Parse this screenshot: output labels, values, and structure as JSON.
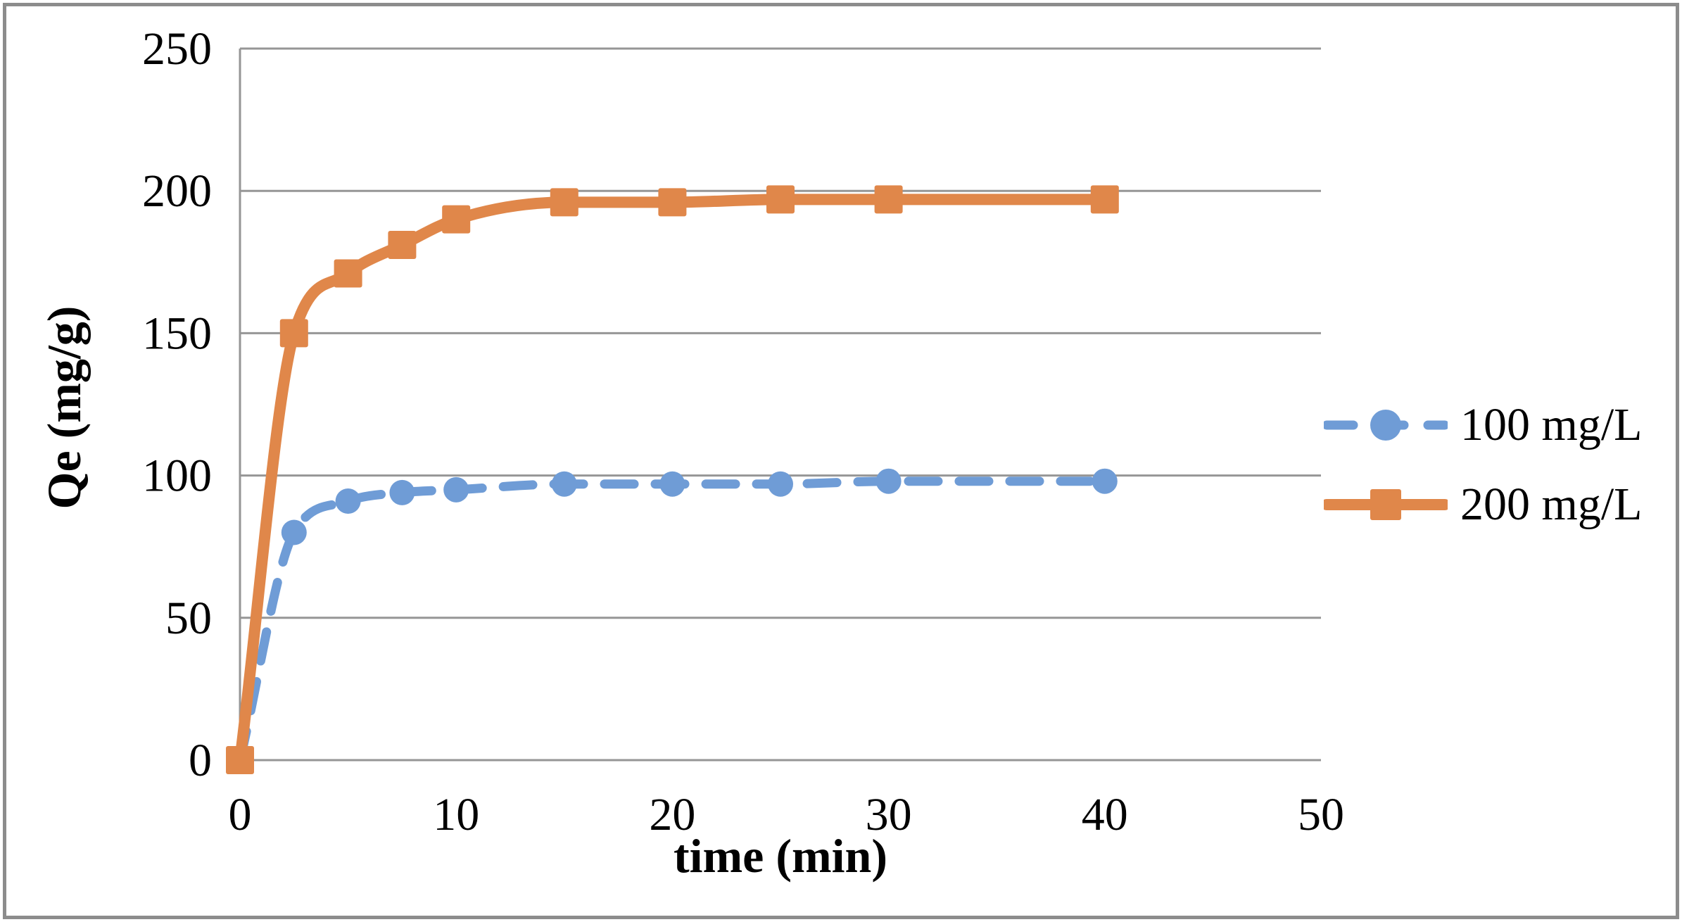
{
  "chart_data": {
    "type": "line",
    "title": "",
    "xlabel": "time (min)",
    "ylabel": "Qe (mg/g)",
    "xlim": [
      0,
      50
    ],
    "ylim": [
      0,
      250
    ],
    "x_ticks": [
      0,
      10,
      20,
      30,
      40,
      50
    ],
    "y_ticks": [
      0,
      50,
      100,
      150,
      200,
      250
    ],
    "grid": "horizontal-only",
    "legend_position": "right-middle",
    "x": [
      0,
      2.5,
      5,
      7.5,
      10,
      15,
      20,
      25,
      30,
      40
    ],
    "series": [
      {
        "name": "100 mg/L",
        "color": "#6F9CD6",
        "line_style": "dashed",
        "line_smooth": true,
        "marker": "circle",
        "values": [
          0,
          80,
          91,
          94,
          95,
          97,
          97,
          97,
          98,
          98
        ]
      },
      {
        "name": "200 mg/L",
        "color": "#E0874A",
        "line_style": "solid",
        "line_smooth": true,
        "marker": "square",
        "values": [
          0,
          150,
          171,
          181,
          190,
          196,
          196,
          197,
          197,
          197
        ]
      }
    ],
    "colors": {
      "gridline": "#969696",
      "axis_line": "#969696",
      "frame_border": "#8C8C8C",
      "text": "#000000",
      "background": "#FFFFFF"
    }
  }
}
